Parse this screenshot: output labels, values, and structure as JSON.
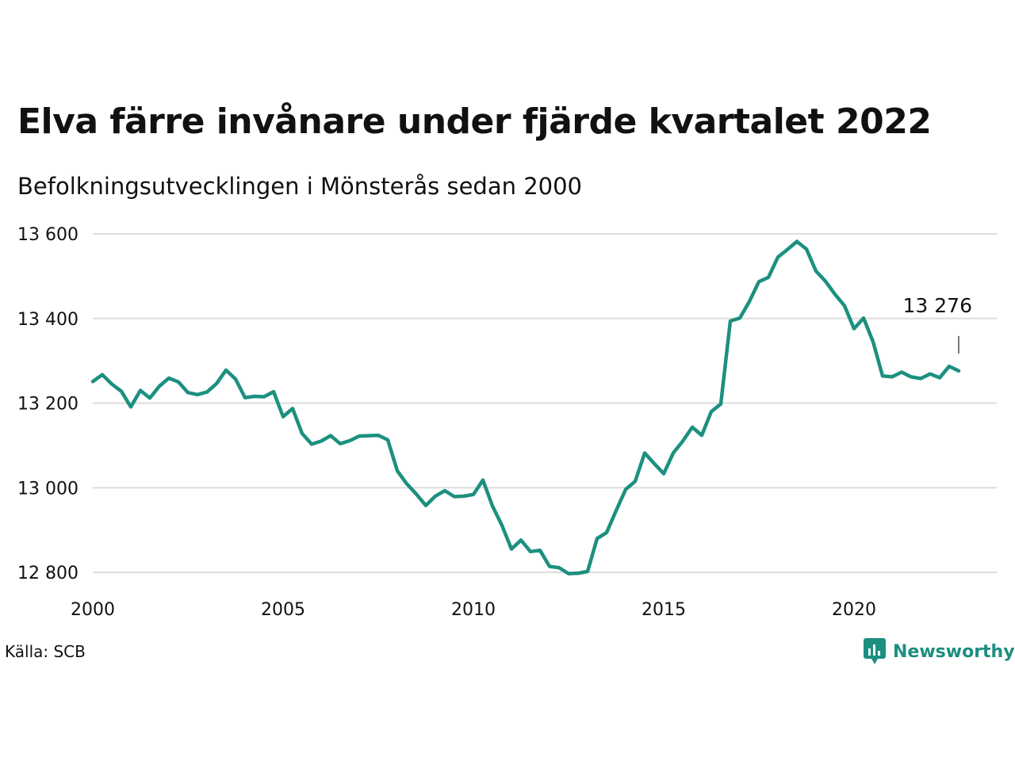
{
  "title": "Elva färre invånare under fjärde kvartalet 2022",
  "subtitle": "Befolkningsutvecklingen i Mönsterås sedan 2000",
  "source": "Källa: SCB",
  "brand": {
    "name": "Newsworthy",
    "icon": "newsworthy-logo-icon",
    "color": "#1c8f80"
  },
  "chart_data": {
    "type": "line",
    "ylim": [
      12800,
      13600
    ],
    "y_ticks": [
      12800,
      13000,
      13200,
      13400,
      13600
    ],
    "y_tick_labels": [
      "12 800",
      "13 000",
      "13 200",
      "13 400",
      "13 600"
    ],
    "x_ticks": [
      2000,
      2005,
      2010,
      2015,
      2020
    ],
    "x_tick_labels": [
      "2000",
      "2005",
      "2010",
      "2015",
      "2020"
    ],
    "grid": true,
    "line_color": "#1c9080",
    "annotation": {
      "label": "13 276",
      "x": 2022.75,
      "y": 13276
    },
    "series": [
      {
        "values": [
          [
            2000.0,
            13251
          ],
          [
            2000.25,
            13267
          ],
          [
            2000.5,
            13245
          ],
          [
            2000.75,
            13228
          ],
          [
            2001.0,
            13191
          ],
          [
            2001.25,
            13230
          ],
          [
            2001.5,
            13212
          ],
          [
            2001.75,
            13240
          ],
          [
            2002.0,
            13259
          ],
          [
            2002.25,
            13250
          ],
          [
            2002.5,
            13225
          ],
          [
            2002.75,
            13220
          ],
          [
            2003.0,
            13226
          ],
          [
            2003.25,
            13246
          ],
          [
            2003.5,
            13278
          ],
          [
            2003.75,
            13257
          ],
          [
            2004.0,
            13213
          ],
          [
            2004.25,
            13216
          ],
          [
            2004.5,
            13215
          ],
          [
            2004.75,
            13227
          ],
          [
            2005.0,
            13168
          ],
          [
            2005.25,
            13187
          ],
          [
            2005.5,
            13128
          ],
          [
            2005.75,
            13103
          ],
          [
            2006.0,
            13110
          ],
          [
            2006.25,
            13123
          ],
          [
            2006.5,
            13104
          ],
          [
            2006.75,
            13111
          ],
          [
            2007.0,
            13122
          ],
          [
            2007.25,
            13123
          ],
          [
            2007.5,
            13124
          ],
          [
            2007.75,
            13113
          ],
          [
            2008.0,
            13040
          ],
          [
            2008.25,
            13009
          ],
          [
            2008.5,
            12985
          ],
          [
            2008.75,
            12958
          ],
          [
            2009.0,
            12980
          ],
          [
            2009.25,
            12993
          ],
          [
            2009.5,
            12979
          ],
          [
            2009.75,
            12980
          ],
          [
            2010.0,
            12984
          ],
          [
            2010.25,
            13018
          ],
          [
            2010.5,
            12957
          ],
          [
            2010.75,
            12911
          ],
          [
            2011.0,
            12855
          ],
          [
            2011.25,
            12876
          ],
          [
            2011.5,
            12849
          ],
          [
            2011.75,
            12852
          ],
          [
            2012.0,
            12814
          ],
          [
            2012.25,
            12811
          ],
          [
            2012.5,
            12797
          ],
          [
            2012.75,
            12798
          ],
          [
            2013.0,
            12802
          ],
          [
            2013.25,
            12880
          ],
          [
            2013.5,
            12894
          ],
          [
            2013.75,
            12946
          ],
          [
            2014.0,
            12996
          ],
          [
            2014.25,
            13015
          ],
          [
            2014.5,
            13082
          ],
          [
            2014.75,
            13057
          ],
          [
            2015.0,
            13033
          ],
          [
            2015.25,
            13082
          ],
          [
            2015.5,
            13110
          ],
          [
            2015.75,
            13143
          ],
          [
            2016.0,
            13124
          ],
          [
            2016.25,
            13180
          ],
          [
            2016.5,
            13198
          ],
          [
            2016.75,
            13394
          ],
          [
            2017.0,
            13401
          ],
          [
            2017.25,
            13440
          ],
          [
            2017.5,
            13487
          ],
          [
            2017.75,
            13497
          ],
          [
            2018.0,
            13545
          ],
          [
            2018.25,
            13563
          ],
          [
            2018.5,
            13582
          ],
          [
            2018.75,
            13564
          ],
          [
            2019.0,
            13512
          ],
          [
            2019.25,
            13488
          ],
          [
            2019.5,
            13457
          ],
          [
            2019.75,
            13430
          ],
          [
            2020.0,
            13376
          ],
          [
            2020.25,
            13401
          ],
          [
            2020.5,
            13345
          ],
          [
            2020.75,
            13264
          ],
          [
            2021.0,
            13262
          ],
          [
            2021.25,
            13273
          ],
          [
            2021.5,
            13262
          ],
          [
            2021.75,
            13258
          ],
          [
            2022.0,
            13269
          ],
          [
            2022.25,
            13260
          ],
          [
            2022.5,
            13287
          ],
          [
            2022.75,
            13276
          ]
        ]
      }
    ]
  }
}
